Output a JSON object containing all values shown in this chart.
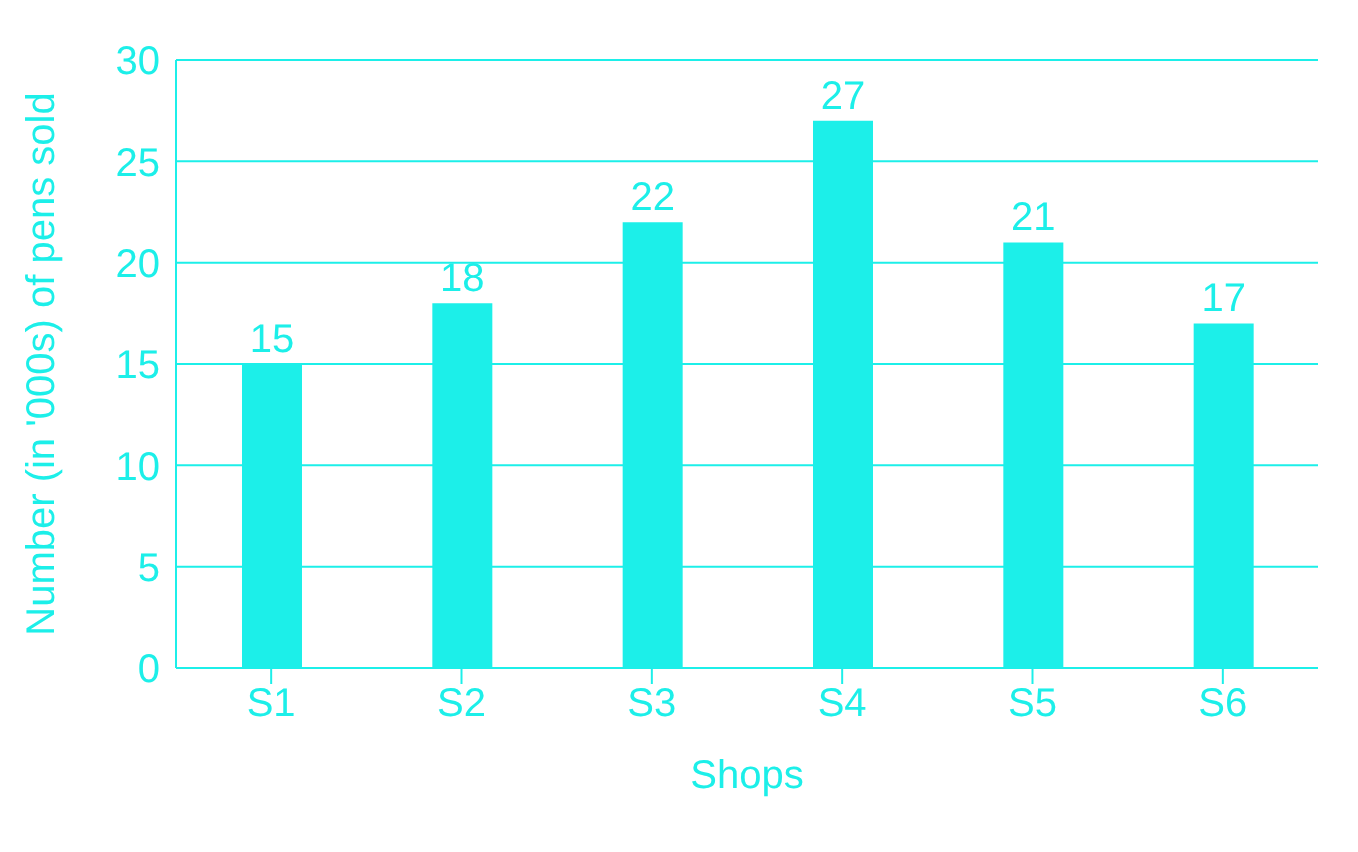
{
  "chart_data": {
    "type": "bar",
    "xlabel": "Shops",
    "ylabel": "Number (in '000s) of pens sold",
    "categories": [
      "S1",
      "S2",
      "S3",
      "S4",
      "S5",
      "S6"
    ],
    "values": [
      15,
      18,
      22,
      27,
      21,
      17
    ],
    "color": "#1cefe9",
    "ylim": [
      0,
      30
    ],
    "yticks": [
      0,
      5,
      10,
      15,
      20,
      25,
      30
    ],
    "grid": "y",
    "data_labels": true
  }
}
